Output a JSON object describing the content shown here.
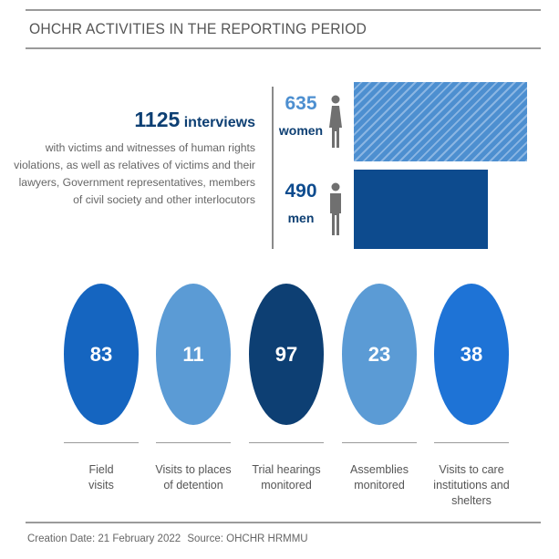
{
  "title": "OHCHR ACTIVITIES IN THE REPORTING PERIOD",
  "interviews": {
    "total": "1125",
    "word": "interviews",
    "description": "with victims and witnesses of human rights violations,  as well as relatives of victims and their lawyers, Government representatives, members of civil society and other interlocutors"
  },
  "chart_data": [
    {
      "type": "bar",
      "categories": [
        "women",
        "men"
      ],
      "values": [
        635,
        490
      ],
      "colors": [
        "#4d8fd0",
        "#0d4b8e"
      ],
      "patterns": [
        "hatched",
        "solid"
      ],
      "labels": [
        "635",
        "490"
      ]
    },
    {
      "type": "bubble",
      "categories": [
        "Field\nvisits",
        "Visits to places\nof detention",
        "Trial hearings\nmonitored",
        "Assemblies\nmonitored",
        "Visits to care\ninstitutions and shelters"
      ],
      "values": [
        83,
        11,
        97,
        23,
        38
      ],
      "colors": [
        "#1565c0",
        "#5b9bd5",
        "#0d3f73",
        "#5b9bd5",
        "#1e73d6"
      ]
    }
  ],
  "footer": {
    "creation": "Creation Date: 21 February 2022",
    "source": "Source: OHCHR HRMMU"
  },
  "icons": {
    "woman": "woman-icon",
    "man": "man-icon"
  }
}
